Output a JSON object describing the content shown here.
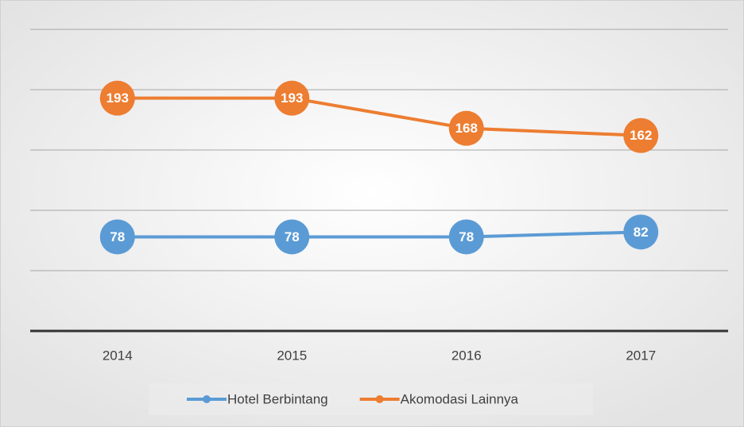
{
  "chart_data": {
    "type": "line",
    "categories": [
      "2014",
      "2015",
      "2016",
      "2017"
    ],
    "series": [
      {
        "name": "Hotel Berbintang",
        "color": "#5b9bd5",
        "values": [
          78,
          78,
          78,
          82
        ]
      },
      {
        "name": "Akomodasi Lainnya",
        "color": "#ed7d31",
        "values": [
          193,
          193,
          168,
          162
        ]
      }
    ],
    "ylim": [
      0,
      250
    ],
    "yticks": [
      0,
      50,
      100,
      150,
      200,
      250
    ],
    "grid": true,
    "legend": "bottom"
  }
}
